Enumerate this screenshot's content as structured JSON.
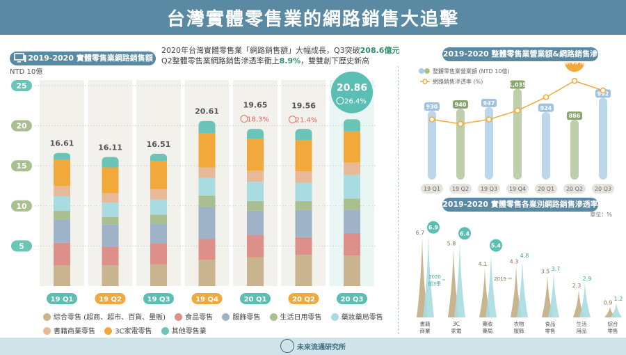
{
  "title": "台灣實體零售業的網路銷售大追擊",
  "headline": {
    "line1_a": "2020年台灣實體零售業「網路銷售額」大幅成長，Q3突破",
    "line1_b": "208.6億元",
    "line2_a": "Q2整體零售業網路銷售滲透率衝上",
    "line2_b": "8.9%",
    "line2_c": "，雙雙創下歷史新高"
  },
  "footer": "未來流通研究所",
  "colors": {
    "banner": "#5a8aa3",
    "综合": "#c8b48e",
    "食品": "#dd8f8a",
    "服飾": "#9fb3c8",
    "生活": "#a9bf8f",
    "藥妝": "#a9dce0",
    "書籍": "#e8b996",
    "3C": "#f2a93b",
    "其他": "#6ac4b8",
    "highlight": "#5bbeb3",
    "orange": "#f2a93b"
  },
  "chart_data": [
    {
      "type": "bar",
      "title": "2019-2020 實體零售業網路銷售額",
      "ylabel": "NTD 10億",
      "ylim": [
        0,
        25
      ],
      "yticks": [
        "5",
        "10",
        "15",
        "20",
        "25"
      ],
      "categories": [
        "19 Q1",
        "19 Q2",
        "19 Q3",
        "19 Q4",
        "20 Q1",
        "20 Q2",
        "20 Q3"
      ],
      "totals": [
        16.61,
        16.11,
        16.51,
        20.61,
        19.65,
        19.56,
        20.86
      ],
      "total_labels": [
        "16.61",
        "16.11",
        "16.51",
        "20.61",
        "19.65",
        "19.56",
        "20.86"
      ],
      "growth_labels": [
        "",
        "",
        "",
        "",
        "18.3%",
        "21.4%",
        "26.4%"
      ],
      "series": [
        {
          "name": "綜合零售 (超商、超市、百貨、量販)",
          "values": [
            2.6,
            2.6,
            2.7,
            3.3,
            3.6,
            3.9,
            3.8
          ]
        },
        {
          "name": "食品零售",
          "values": [
            2.8,
            2.3,
            2.6,
            2.6,
            2.8,
            2.2,
            2.8
          ]
        },
        {
          "name": "服飾零售",
          "values": [
            2.9,
            2.8,
            2.5,
            4.0,
            3.0,
            3.4,
            2.9
          ]
        },
        {
          "name": "生活日用零售",
          "values": [
            1.1,
            0.9,
            1.1,
            1.4,
            1.2,
            1.1,
            1.4
          ]
        },
        {
          "name": "藥妝藥局零售",
          "values": [
            1.8,
            1.8,
            1.9,
            2.2,
            2.4,
            2.3,
            3.0
          ]
        },
        {
          "name": "書籍商業零售",
          "values": [
            1.3,
            1.2,
            1.3,
            1.3,
            1.4,
            1.4,
            1.5
          ]
        },
        {
          "name": "3C家電零售",
          "values": [
            3.3,
            3.2,
            3.5,
            4.3,
            4.0,
            3.9,
            3.9
          ]
        },
        {
          "name": "其他零售業",
          "values": [
            0.8,
            1.3,
            0.9,
            1.5,
            1.2,
            1.4,
            1.5
          ]
        }
      ],
      "highlight_index": 6
    },
    {
      "type": "bar",
      "title": "2019-2020 整體零售業營業額&網路銷售滲透率",
      "categories": [
        "19 Q1",
        "19 Q2",
        "19 Q3",
        "19 Q4",
        "20 Q1",
        "20 Q2",
        "20 Q3"
      ],
      "series": [
        {
          "name": "整體零售業營業額 (NTD 10億)",
          "values": [
            930,
            940,
            947,
            1035,
            924,
            886,
            992
          ],
          "labels": [
            "930",
            "940",
            "947",
            "1,035",
            "924",
            "886",
            "992"
          ]
        },
        {
          "name": "網路銷售滲透率 (%)",
          "values": [
            7.2,
            7.0,
            7.2,
            7.6,
            8.2,
            8.93,
            8.5
          ],
          "labels": [
            "",
            "",
            "",
            "",
            "",
            "8.93%",
            ""
          ]
        }
      ],
      "hatched": [
        "19 Q2",
        "19 Q4",
        "20 Q2"
      ]
    },
    {
      "type": "area",
      "title": "2019-2020 實體零售各業別網路銷售滲透率",
      "unit": "單位：%",
      "categories": [
        "書籍\n商業",
        "3C\n家電",
        "藥妝\n藥局",
        "衣物\n服飾",
        "食品\n零售",
        "生活\n用品",
        "綜合\n零售"
      ],
      "series": [
        {
          "name": "2019",
          "values": [
            6.7,
            5.8,
            4.1,
            4.3,
            3.5,
            2.3,
            0.9
          ],
          "labels": [
            "6.7",
            "5.8",
            "4.1",
            "4.3",
            "3.5",
            "2.3",
            "0.9"
          ]
        },
        {
          "name": "2020\n前3季",
          "values": [
            6.9,
            6.4,
            5.4,
            4.8,
            3.7,
            2.9,
            1.2
          ],
          "labels": [
            "6.9",
            "6.4",
            "5.4",
            "4.8",
            "3.7",
            "2.9",
            "1.2"
          ]
        }
      ],
      "ylim": [
        0,
        7.4
      ]
    }
  ]
}
